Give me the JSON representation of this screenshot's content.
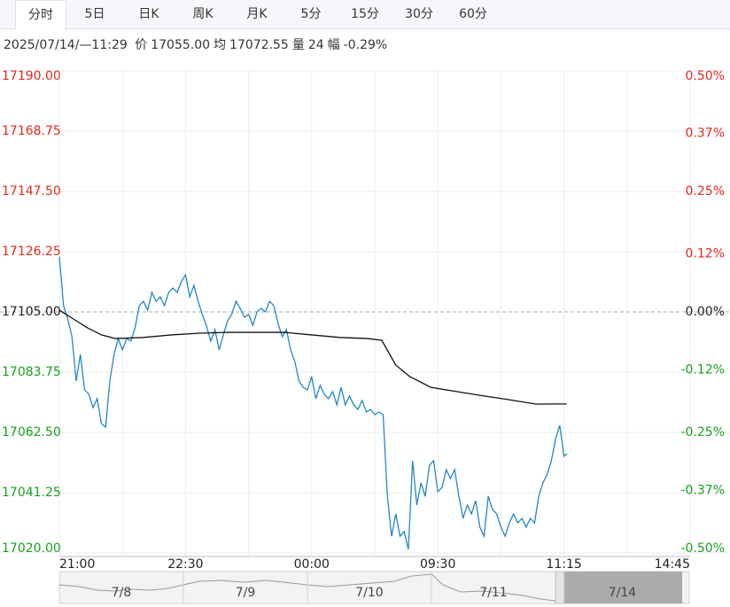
{
  "tabs": [
    "分时",
    "5日",
    "日K",
    "周K",
    "月K",
    "5分",
    "15分",
    "30分",
    "60分"
  ],
  "active_tab": 0,
  "info": {
    "time": "2025/07/14/—11:29",
    "items": [
      {
        "label": "价",
        "value": "17055.00"
      },
      {
        "label": "均",
        "value": "17072.55"
      },
      {
        "label": "量",
        "value": "24"
      },
      {
        "label": "幅",
        "value": "-0.29%"
      }
    ]
  },
  "chart_data": {
    "type": "line",
    "xlim": [
      0,
      450
    ],
    "xticks": [
      {
        "value": 0,
        "label": "21:00"
      },
      {
        "value": 90,
        "label": "22:30"
      },
      {
        "value": 180,
        "label": "00:00"
      },
      {
        "value": 270,
        "label": "09:30"
      },
      {
        "value": 360,
        "label": "11:15"
      },
      {
        "value": 450,
        "label": "14:45"
      }
    ],
    "ylim": [
      17020,
      17190
    ],
    "yticks": [
      {
        "value": 17190,
        "label": "17190.00"
      },
      17168.75,
      {
        "value": 17147.5,
        "label": "17147.50"
      },
      17126.25,
      {
        "value": 17105,
        "label": "17105.00"
      },
      17083.75,
      {
        "value": 17062.5,
        "label": "17062.50"
      },
      17041.25,
      {
        "value": 17020,
        "label": "17020.00"
      }
    ],
    "y2lim": [
      -0.5,
      0.5
    ],
    "y2ticks": [
      {
        "value": 0.5,
        "label": "0.50%"
      },
      {
        "value": 0.37,
        "label": "0.37%"
      },
      {
        "value": 0.25,
        "label": "0.25%"
      },
      {
        "value": 0.12,
        "label": "0.12%"
      },
      {
        "value": 0,
        "label": "0.00%"
      },
      {
        "value": -0.12,
        "label": "-0.12%"
      },
      {
        "value": -0.25,
        "label": "-0.25%"
      },
      {
        "value": -0.37,
        "label": "-0.37%"
      },
      {
        "value": -0.5,
        "label": "-0.50%"
      }
    ],
    "baseline": 17105,
    "grid": true,
    "up_color": "#e5281c",
    "down_color": "#17a11f",
    "flat_color": "#222222",
    "series": [
      {
        "color": "#2386c6",
        "x": [
          0,
          3,
          6,
          9,
          12,
          15,
          18,
          21,
          24,
          27,
          30,
          33,
          36,
          39,
          42,
          45,
          48,
          51,
          54,
          57,
          60,
          63,
          66,
          69,
          72,
          75,
          78,
          81,
          84,
          87,
          90,
          93,
          96,
          99,
          102,
          105,
          108,
          111,
          114,
          117,
          120,
          123,
          126,
          129,
          132,
          135,
          138,
          141,
          144,
          147,
          150,
          153,
          156,
          159,
          162,
          165,
          168,
          171,
          174,
          177,
          180,
          183,
          186,
          189,
          192,
          195,
          198,
          201,
          204,
          207,
          210,
          213,
          216,
          219,
          222,
          225,
          228,
          231,
          234,
          237,
          240,
          243,
          246,
          249,
          252,
          255,
          258,
          261,
          264,
          267,
          270,
          273,
          276,
          279,
          282,
          285,
          288,
          291,
          294,
          297,
          300,
          303,
          306,
          309,
          312,
          315,
          318,
          321,
          324,
          327,
          330,
          333,
          336,
          339,
          342,
          345,
          348,
          351,
          354,
          357,
          360,
          362
        ],
        "values": [
          17124.4,
          17107.2,
          17102.5,
          17096.25,
          17080.6,
          17090,
          17077.5,
          17076,
          17071.25,
          17074.4,
          17065.6,
          17064.4,
          17080.6,
          17090,
          17095.6,
          17091.6,
          17095.6,
          17094.7,
          17099.4,
          17107.2,
          17108.75,
          17105.6,
          17111.9,
          17108.75,
          17110.3,
          17107.2,
          17111.9,
          17113.4,
          17111.9,
          17115.6,
          17118.1,
          17110.3,
          17114.4,
          17108.75,
          17104.1,
          17100,
          17094.7,
          17098.75,
          17091.6,
          17096.9,
          17101.9,
          17104.1,
          17108.75,
          17106.25,
          17103.1,
          17104.1,
          17100.3,
          17105,
          17106.25,
          17105,
          17108.75,
          17107.2,
          17101,
          17096.25,
          17098.75,
          17091.6,
          17087.5,
          17080.6,
          17078.4,
          17077.5,
          17082.2,
          17074.4,
          17079.1,
          17075.9,
          17074.4,
          17076.9,
          17072.2,
          17078.4,
          17072.2,
          17075.3,
          17072.2,
          17070.6,
          17073.75,
          17069.7,
          17070.6,
          17068.75,
          17069.7,
          17068.75,
          17040,
          17025.9,
          17033.75,
          17025.9,
          17027.5,
          17021.25,
          17052.5,
          17036.9,
          17044.7,
          17040,
          17050.9,
          17052.5,
          17041.6,
          17043.1,
          17049.4,
          17046.25,
          17049.4,
          17040,
          17032.2,
          17036.9,
          17033.75,
          17038.4,
          17029.1,
          17025.9,
          17040,
          17035.3,
          17033.75,
          17029.1,
          17025.9,
          17030.6,
          17033.75,
          17030.6,
          17032.2,
          17029.1,
          17032.2,
          17030.6,
          17040,
          17044.7,
          17047.8,
          17052.5,
          17060.3,
          17065,
          17054.1,
          17055
        ]
      },
      {
        "color": "#111111",
        "x": [
          0,
          10,
          20,
          30,
          40,
          60,
          80,
          100,
          120,
          140,
          160,
          180,
          200,
          220,
          230,
          240,
          250,
          265,
          280,
          300,
          320,
          340,
          362
        ],
        "values": [
          17105.6,
          17102.5,
          17099.4,
          17096.9,
          17095.6,
          17096,
          17096.9,
          17097.5,
          17097.8,
          17097.8,
          17097.8,
          17096.9,
          17096,
          17095.6,
          17095,
          17086.25,
          17082.2,
          17078.4,
          17077.2,
          17075.6,
          17074.1,
          17072.5,
          17072.55
        ]
      }
    ]
  },
  "navigator": {
    "labels": [
      "7/8",
      "7/9",
      "7/10",
      "7/11",
      "7/14"
    ],
    "selected": 4
  }
}
